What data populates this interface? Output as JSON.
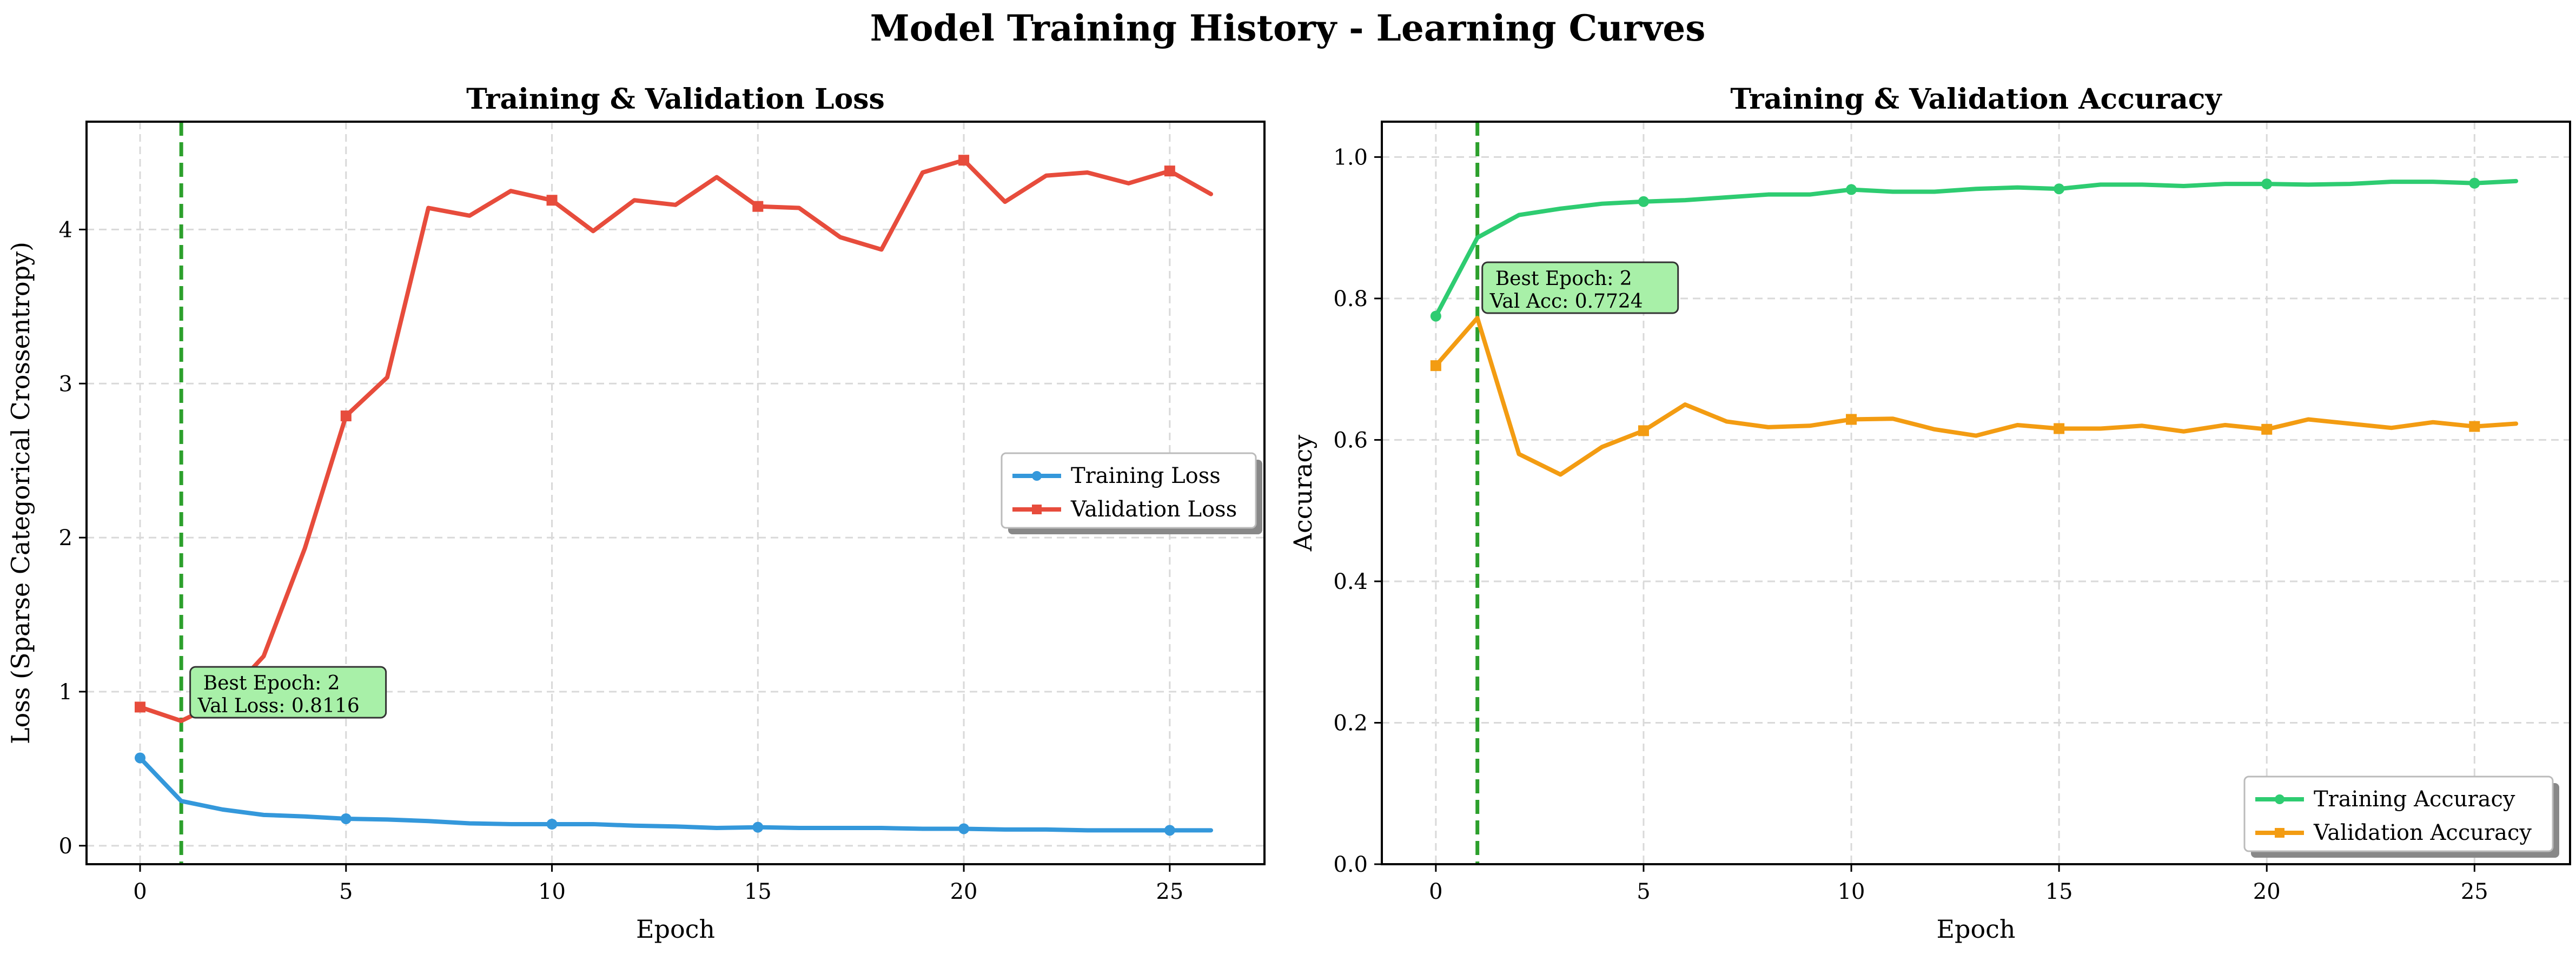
{
  "figure": {
    "title": "Model Training History - Learning Curves"
  },
  "colors": {
    "train_loss": "#3498db",
    "val_loss": "#e74c3c",
    "train_acc": "#2ecc71",
    "val_acc": "#f39c12",
    "best_line": "#2ca02c",
    "annotation_bg": "#a8f0a8",
    "grid": "#d9d9d9"
  },
  "chart_data": [
    {
      "type": "line",
      "title": "Training & Validation Loss",
      "xlabel": "Epoch",
      "ylabel": "Loss (Sparse Categorical Crossentropy)",
      "xlim": [
        -1.3,
        27.3
      ],
      "ylim": [
        -0.12,
        4.7
      ],
      "xticks": [
        0,
        5,
        10,
        15,
        20,
        25
      ],
      "yticks": [
        0,
        1,
        2,
        3,
        4
      ],
      "grid": true,
      "legend_position": "center-right",
      "best_epoch_x": 1,
      "annotation": {
        "lines": [
          "Best Epoch: 2",
          "Val Loss: 0.8116"
        ],
        "x": 1.4,
        "y": 0.88
      },
      "x": [
        0,
        1,
        2,
        3,
        4,
        5,
        6,
        7,
        8,
        9,
        10,
        11,
        12,
        13,
        14,
        15,
        16,
        17,
        18,
        19,
        20,
        21,
        22,
        23,
        24,
        25,
        26
      ],
      "series": [
        {
          "name": "Training Loss",
          "color_key": "train_loss",
          "marker": "circle",
          "values": [
            0.57,
            0.29,
            0.235,
            0.2,
            0.19,
            0.175,
            0.17,
            0.16,
            0.145,
            0.14,
            0.14,
            0.14,
            0.13,
            0.125,
            0.115,
            0.12,
            0.115,
            0.115,
            0.115,
            0.11,
            0.11,
            0.105,
            0.105,
            0.1,
            0.1,
            0.1,
            0.1
          ]
        },
        {
          "name": "Validation Loss",
          "color_key": "val_loss",
          "marker": "square",
          "values": [
            0.9,
            0.81,
            0.94,
            1.23,
            1.93,
            2.79,
            3.04,
            4.14,
            4.09,
            4.25,
            4.19,
            3.99,
            4.19,
            4.16,
            4.34,
            4.15,
            4.14,
            3.95,
            3.87,
            4.37,
            4.45,
            4.18,
            4.35,
            4.37,
            4.3,
            4.38,
            4.23
          ]
        }
      ]
    },
    {
      "type": "line",
      "title": "Training & Validation Accuracy",
      "xlabel": "Epoch",
      "ylabel": "Accuracy",
      "xlim": [
        -1.3,
        27.3
      ],
      "ylim": [
        0,
        1.05
      ],
      "xticks": [
        0,
        5,
        10,
        15,
        20,
        25
      ],
      "yticks": [
        0,
        0.2,
        0.4,
        0.6,
        0.8,
        1.0
      ],
      "ytick_labels": [
        "0.0",
        "0.2",
        "0.4",
        "0.6",
        "0.8",
        "1.0"
      ],
      "grid": true,
      "legend_position": "bottom-right",
      "best_epoch_x": 1,
      "annotation": {
        "lines": [
          "Best Epoch: 2",
          "Val Acc: 0.7724"
        ],
        "x": 1.3,
        "y": 0.79
      },
      "x": [
        0,
        1,
        2,
        3,
        4,
        5,
        6,
        7,
        8,
        9,
        10,
        11,
        12,
        13,
        14,
        15,
        16,
        17,
        18,
        19,
        20,
        21,
        22,
        23,
        24,
        25,
        26
      ],
      "series": [
        {
          "name": "Training Accuracy",
          "color_key": "train_acc",
          "marker": "circle",
          "values": [
            0.775,
            0.886,
            0.918,
            0.927,
            0.934,
            0.937,
            0.939,
            0.943,
            0.947,
            0.947,
            0.954,
            0.951,
            0.951,
            0.955,
            0.957,
            0.955,
            0.961,
            0.961,
            0.959,
            0.962,
            0.962,
            0.961,
            0.962,
            0.965,
            0.965,
            0.963,
            0.966
          ]
        },
        {
          "name": "Validation Accuracy",
          "color_key": "val_acc",
          "marker": "square",
          "values": [
            0.705,
            0.7724,
            0.58,
            0.551,
            0.59,
            0.613,
            0.65,
            0.626,
            0.618,
            0.62,
            0.629,
            0.63,
            0.615,
            0.606,
            0.621,
            0.616,
            0.616,
            0.62,
            0.612,
            0.621,
            0.615,
            0.629,
            0.623,
            0.617,
            0.625,
            0.619,
            0.623
          ]
        }
      ]
    }
  ]
}
